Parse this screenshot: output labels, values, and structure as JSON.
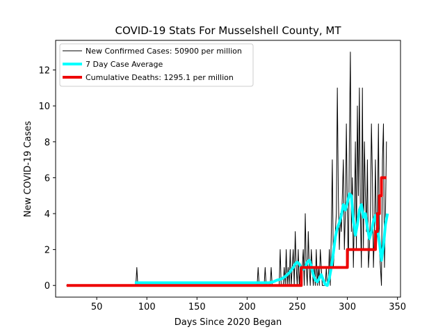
{
  "chart_data": {
    "type": "line",
    "title": "COVID-19 Stats For Musselshell County, MT",
    "xlabel": "Days Since 2020 Began",
    "ylabel": "New COVID-19 Cases",
    "xlim": [
      9,
      353
    ],
    "ylim": [
      -0.65,
      13.65
    ],
    "xticks": [
      50,
      100,
      150,
      200,
      250,
      300,
      350
    ],
    "yticks": [
      0,
      2,
      4,
      6,
      8,
      10,
      12
    ],
    "grid": false,
    "legend_position": "upper-left",
    "series": [
      {
        "name": "New Confirmed Cases: 50900 per million",
        "color": "#000000",
        "linewidth": 1,
        "x": [
          20,
          88,
          89,
          90,
          91,
          92,
          93,
          94,
          95,
          96,
          210,
          211,
          212,
          217,
          218,
          219,
          223,
          224,
          225,
          232,
          233,
          234,
          236,
          237,
          238,
          239,
          240,
          241,
          242,
          243,
          244,
          245,
          246,
          247,
          248,
          249,
          250,
          251,
          252,
          253,
          254,
          255,
          256,
          257,
          258,
          259,
          260,
          261,
          262,
          263,
          264,
          265,
          266,
          267,
          268,
          269,
          270,
          271,
          272,
          273,
          274,
          275,
          276,
          277,
          278,
          279,
          280,
          281,
          282,
          283,
          284,
          285,
          286,
          287,
          288,
          289,
          290,
          291,
          292,
          293,
          294,
          295,
          296,
          297,
          298,
          299,
          300,
          301,
          302,
          303,
          304,
          305,
          306,
          307,
          308,
          309,
          310,
          311,
          312,
          313,
          314,
          315,
          316,
          317,
          318,
          319,
          320,
          321,
          322,
          323,
          324,
          325,
          326,
          327,
          328,
          329,
          330,
          331,
          332,
          333,
          334,
          335,
          336,
          337,
          338,
          339
        ],
        "y": [
          0,
          0,
          0,
          1,
          0,
          0,
          0,
          0,
          0,
          0,
          0,
          1,
          0,
          0,
          1,
          0,
          0,
          1,
          0,
          0,
          2,
          0,
          0,
          1,
          0,
          2,
          0,
          1,
          0,
          2,
          0,
          1,
          2,
          0,
          3,
          1,
          0,
          2,
          0,
          1,
          0,
          1,
          2,
          0,
          4,
          1,
          0,
          3,
          1,
          0,
          2,
          1,
          0,
          1,
          0,
          2,
          0,
          1,
          0,
          2,
          1,
          0,
          0,
          0,
          0,
          1,
          0,
          0,
          2,
          0,
          3,
          7,
          1,
          2,
          3,
          4,
          11,
          5,
          2,
          4,
          3,
          5,
          7,
          2,
          4,
          9,
          4,
          1,
          8,
          13,
          3,
          6,
          1,
          4,
          8,
          2,
          10,
          5,
          11,
          4,
          1,
          11,
          2,
          8,
          5,
          3,
          7,
          1,
          2,
          4,
          9,
          6,
          1,
          3,
          7,
          2,
          4,
          9,
          2,
          1,
          0,
          7,
          9,
          1,
          4,
          8
        ]
      },
      {
        "name": "7 Day Case Average",
        "color": "#00ffff",
        "linewidth": 4,
        "x": [
          88,
          90,
          92,
          94,
          96,
          210,
          214,
          218,
          222,
          226,
          230,
          234,
          238,
          242,
          246,
          248,
          250,
          252,
          254,
          256,
          258,
          260,
          262,
          264,
          266,
          268,
          270,
          272,
          274,
          276,
          278,
          280,
          282,
          284,
          286,
          288,
          290,
          292,
          294,
          296,
          298,
          300,
          302,
          304,
          306,
          308,
          310,
          312,
          314,
          316,
          318,
          320,
          322,
          324,
          326,
          328,
          330,
          332,
          334,
          336,
          338,
          340
        ],
        "y": [
          0.15,
          0.15,
          0.15,
          0.15,
          0.15,
          0.15,
          0.15,
          0.15,
          0.15,
          0.2,
          0.3,
          0.35,
          0.5,
          0.7,
          1.0,
          1.2,
          1.3,
          1.2,
          1.0,
          0.9,
          1.0,
          1.3,
          1.4,
          1.1,
          0.6,
          0.3,
          0.2,
          0.4,
          0.6,
          0.3,
          0.05,
          0.0,
          0.4,
          1.0,
          1.8,
          2.7,
          3.2,
          3.5,
          3.9,
          4.5,
          4.2,
          4.6,
          5.1,
          5.0,
          3.6,
          2.8,
          3.4,
          4.2,
          4.5,
          3.8,
          4.0,
          3.2,
          2.6,
          3.0,
          3.6,
          3.9,
          3.2,
          2.4,
          1.4,
          2.2,
          3.4,
          4.0
        ]
      },
      {
        "name": "Cumulative Deaths: 1295.1 per million",
        "color": "#ee0000",
        "linewidth": 4,
        "step": true,
        "x": [
          20,
          254,
          254,
          300,
          300,
          328,
          328,
          330,
          330,
          332,
          332,
          334,
          334,
          339
        ],
        "y": [
          0,
          0,
          1,
          1,
          2,
          2,
          3,
          3,
          4,
          4,
          5,
          5,
          6,
          6
        ]
      }
    ]
  }
}
